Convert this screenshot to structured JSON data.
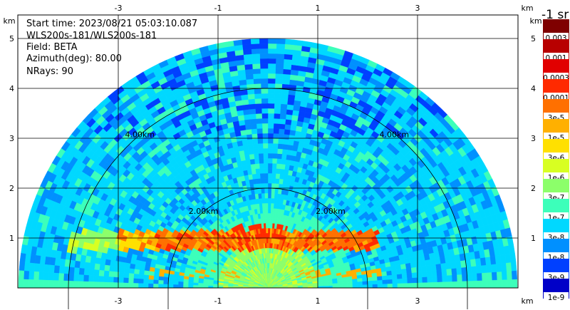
{
  "info": {
    "start_time": "Start time: 2023/08/21 05:03:10.087",
    "instrument": "WLS200s-181/WLS200s-181",
    "field": "Field: BETA",
    "azimuth": "Azimuth(deg): 80.00",
    "nrays": "NRays: 90"
  },
  "colorbar": {
    "unit_label": "-1 sr",
    "levels": [
      {
        "label": "0.003",
        "color": "#7f0000"
      },
      {
        "label": "0.001",
        "color": "#b80000"
      },
      {
        "label": "0.0003",
        "color": "#e10000"
      },
      {
        "label": "0.0001",
        "color": "#ff2a00"
      },
      {
        "label": "3e-5",
        "color": "#ff7000"
      },
      {
        "label": "1e-5",
        "color": "#ffb000"
      },
      {
        "label": "3e-6",
        "color": "#ffe000"
      },
      {
        "label": "1e-6",
        "color": "#d8ff22"
      },
      {
        "label": "3e-7",
        "color": "#8cff6a"
      },
      {
        "label": "1e-7",
        "color": "#3cffba"
      },
      {
        "label": "3e-8",
        "color": "#00d8ff"
      },
      {
        "label": "1e-8",
        "color": "#0090ff"
      },
      {
        "label": "3e-9",
        "color": "#0040ff"
      },
      {
        "label": "1e-9",
        "color": "#0000c8"
      }
    ]
  },
  "chart_data": {
    "type": "heatmap",
    "subtype": "polar-rhi",
    "field": "BETA",
    "azimuth_deg": 80.0,
    "nrays": 90,
    "x_unit": "km",
    "y_unit": "km",
    "xlim": [
      -5.0,
      5.0
    ],
    "ylim": [
      0.0,
      5.5
    ],
    "x_ticks": [
      -3,
      -1,
      1,
      3
    ],
    "y_ticks": [
      1,
      2,
      3,
      4,
      5
    ],
    "max_range_km": 5.0,
    "range_rings_km": [
      2.0,
      4.0
    ],
    "range_ring_labels": [
      "2.00km",
      "4.00km"
    ],
    "grid": true,
    "colorbar_position": "right",
    "regions": [
      {
        "description": "near ground dome",
        "range_km": [
          0,
          1.0
        ],
        "level": "3e-7"
      },
      {
        "description": "aerosol layer",
        "height_km": [
          0.75,
          1.15
        ],
        "x_km": [
          -4.0,
          2.2
        ],
        "level": "3e-5"
      },
      {
        "description": "layer peak",
        "x_km": [
          -0.7,
          0.4
        ],
        "height_km": [
          0.95,
          1.25
        ],
        "level": "0.0001"
      },
      {
        "description": "free troposphere",
        "height_km": [
          1.5,
          4.5
        ],
        "level": "3e-8"
      }
    ]
  }
}
